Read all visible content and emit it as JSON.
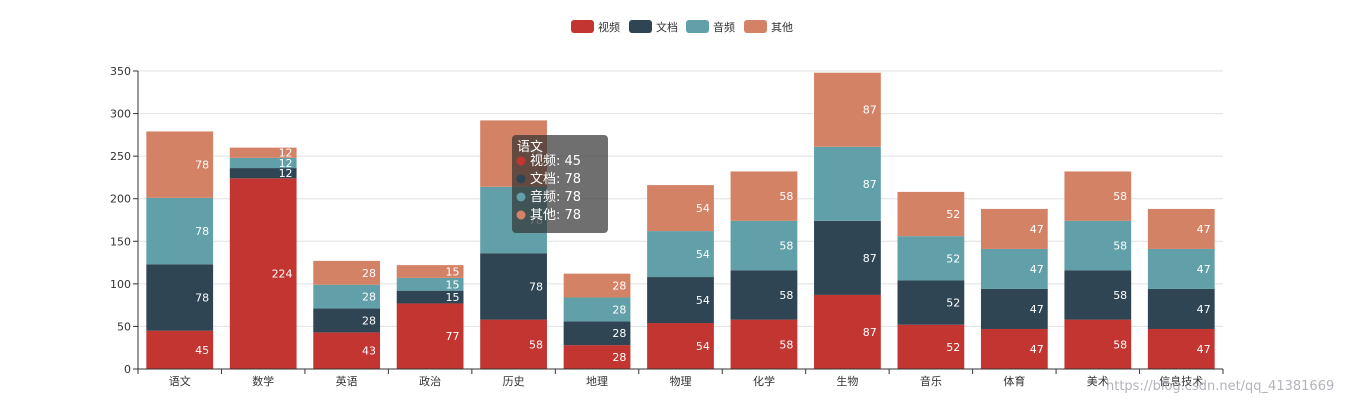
{
  "chart_data": {
    "type": "bar",
    "stacked": true,
    "categories": [
      "语文",
      "数学",
      "英语",
      "政治",
      "历史",
      "地理",
      "物理",
      "化学",
      "生物",
      "音乐",
      "体育",
      "美术",
      "信息技术"
    ],
    "series": [
      {
        "name": "视频",
        "color": "#c23531",
        "values": [
          45,
          224,
          43,
          77,
          58,
          28,
          54,
          58,
          87,
          52,
          47,
          58,
          47
        ]
      },
      {
        "name": "文档",
        "color": "#2f4554",
        "values": [
          78,
          12,
          28,
          15,
          78,
          28,
          54,
          58,
          87,
          52,
          47,
          58,
          47
        ]
      },
      {
        "name": "音频",
        "color": "#61a0a8",
        "values": [
          78,
          12,
          28,
          15,
          78,
          28,
          54,
          58,
          87,
          52,
          47,
          58,
          47
        ]
      },
      {
        "name": "其他",
        "color": "#d48265",
        "values": [
          78,
          12,
          28,
          15,
          78,
          28,
          54,
          58,
          87,
          52,
          47,
          58,
          47
        ]
      }
    ],
    "ylim": [
      0,
      350
    ],
    "yticks": [
      0,
      50,
      100,
      150,
      200,
      250,
      300,
      350
    ],
    "legend_position": "top-center",
    "grid": true
  },
  "tooltip": {
    "title": "语文",
    "items": [
      {
        "name": "视频",
        "value": "45",
        "color": "#c23531"
      },
      {
        "name": "文档",
        "value": "78",
        "color": "#2f4554"
      },
      {
        "name": "音频",
        "value": "78",
        "color": "#61a0a8"
      },
      {
        "name": "其他",
        "value": "78",
        "color": "#d48265"
      }
    ]
  },
  "watermark": "https://blog.csdn.net/qq_41381669"
}
